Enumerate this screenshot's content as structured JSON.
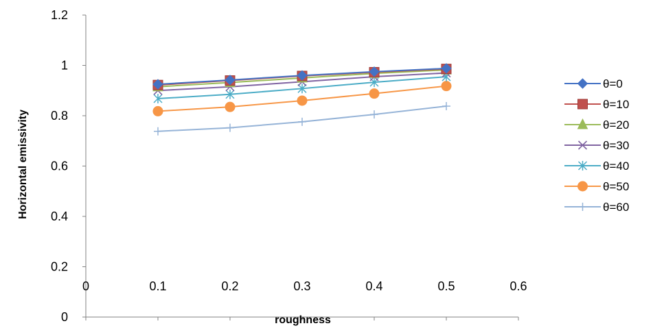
{
  "chart_data": {
    "type": "line",
    "title": "",
    "xlabel": "roughness",
    "ylabel": "Horizontal emissivity",
    "xlim": [
      0,
      0.6
    ],
    "ylim": [
      0,
      1.2
    ],
    "x_ticks": [
      "0",
      "0.1",
      "0.2",
      "0.3",
      "0.4",
      "0.5",
      "0.6"
    ],
    "y_ticks": [
      "0",
      "0.2",
      "0.4",
      "0.6",
      "0.8",
      "1",
      "1.2"
    ],
    "grid": false,
    "legend_position": "right",
    "x": [
      0.1,
      0.2,
      0.3,
      0.4,
      0.5
    ],
    "series": [
      {
        "name": "θ=0",
        "color": "#4472C4",
        "marker": "diamond",
        "values": [
          0.925,
          0.942,
          0.96,
          0.975,
          0.988
        ]
      },
      {
        "name": "θ=10",
        "color": "#C0504D",
        "marker": "square",
        "values": [
          0.922,
          0.94,
          0.958,
          0.973,
          0.986
        ]
      },
      {
        "name": "θ=20",
        "color": "#9BBB59",
        "marker": "triangle",
        "values": [
          0.915,
          0.932,
          0.95,
          0.968,
          0.982
        ]
      },
      {
        "name": "θ=30",
        "color": "#8064A2",
        "marker": "x",
        "values": [
          0.9,
          0.915,
          0.935,
          0.955,
          0.97
        ]
      },
      {
        "name": "θ=40",
        "color": "#4BACC6",
        "marker": "star",
        "values": [
          0.868,
          0.885,
          0.908,
          0.933,
          0.955
        ]
      },
      {
        "name": "θ=50",
        "color": "#F79646",
        "marker": "circle",
        "values": [
          0.818,
          0.835,
          0.86,
          0.888,
          0.918
        ]
      },
      {
        "name": "θ=60",
        "color": "#95B3D7",
        "marker": "plus",
        "values": [
          0.738,
          0.752,
          0.776,
          0.805,
          0.838
        ]
      }
    ]
  }
}
